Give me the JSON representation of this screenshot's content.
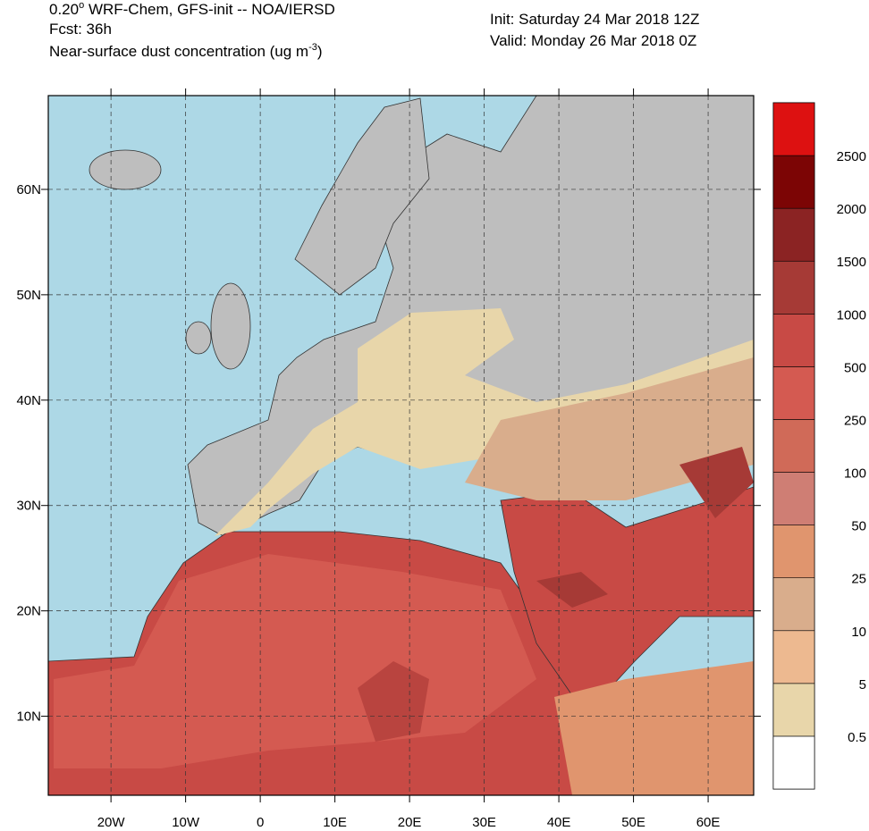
{
  "header": {
    "title": [
      "0.20",
      "o",
      " WRF-Chem, GFS-init -- NOA/IERSD"
    ],
    "forecast": "Fcst: 36h",
    "subtitle": [
      "Near-surface dust concentration (ug m",
      "-3",
      ")"
    ],
    "init": "Init: Saturday 24 Mar 2018  12Z",
    "valid": "Valid: Monday 26 Mar 2018  0Z"
  },
  "map": {
    "xlim": [
      -28.4,
      66.1
    ],
    "ylim": [
      2.5,
      68.9
    ],
    "xticks": [
      {
        "value": -20,
        "label": "20W"
      },
      {
        "value": -10,
        "label": "10W"
      },
      0,
      {
        "value": 10,
        "label": "10E"
      },
      {
        "value": 20,
        "label": "20E"
      },
      {
        "value": 30,
        "label": "30E"
      },
      {
        "value": 40,
        "label": "40E"
      },
      {
        "value": 50,
        "label": "50E"
      },
      {
        "value": 60,
        "label": "60E"
      }
    ],
    "yticks": [
      {
        "value": 10,
        "label": "10N"
      },
      {
        "value": 20,
        "label": "20N"
      },
      {
        "value": 30,
        "label": "30N"
      },
      {
        "value": 40,
        "label": "40N"
      },
      {
        "value": 50,
        "label": "50N"
      },
      {
        "value": 60,
        "label": "60N"
      }
    ],
    "grid": true
  },
  "colorbar": {
    "levels": [
      0.5,
      5,
      10,
      25,
      50,
      100,
      250,
      500,
      1000,
      1500,
      2000,
      2500
    ],
    "colors": [
      "#ffffff",
      "#e8d6aa",
      "#edb990",
      "#d9ad8c",
      "#e0956e",
      "#cf7e74",
      "#d06a58",
      "#d45a51",
      "#c84a45",
      "#a63a36",
      "#8b2323",
      "#7c0505",
      "#dd1111"
    ]
  }
}
